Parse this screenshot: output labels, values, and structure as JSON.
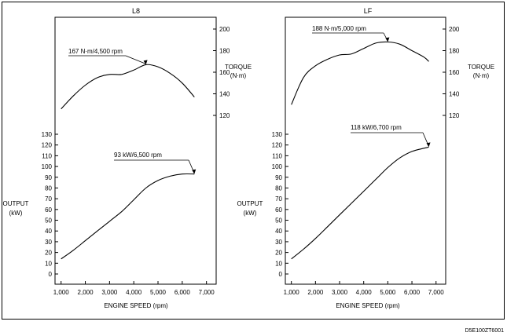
{
  "figure_code": "D5E100ZT6001",
  "chart_data": [
    {
      "type": "line",
      "title": "L8",
      "xlabel": "ENGINE SPEED (rpm)",
      "x_ticks": [
        1000,
        2000,
        3000,
        4000,
        5000,
        6000,
        7000
      ],
      "x_tick_labels": [
        "1,000",
        "2,000",
        "3,000",
        "4,000",
        "5,000",
        "6,000",
        "7,000"
      ],
      "xlim": [
        750,
        7400
      ],
      "torque_axis": {
        "label_line1": "TORQUE",
        "label_line2": "(N·m)",
        "ticks": [
          120,
          140,
          160,
          180,
          200
        ],
        "tick_labels": [
          "120",
          "140",
          "160",
          "180",
          "200"
        ]
      },
      "output_axis": {
        "label_line1": "OUTPUT",
        "label_line2": "(kW)",
        "ticks": [
          0,
          10,
          20,
          30,
          40,
          50,
          60,
          70,
          80,
          90,
          100,
          110,
          120,
          130
        ],
        "tick_labels": [
          "0",
          "10",
          "20",
          "30",
          "40",
          "50",
          "60",
          "70",
          "80",
          "90",
          "100",
          "110",
          "120",
          "130"
        ]
      },
      "series": [
        {
          "key": "torque",
          "x": [
            1000,
            1500,
            2000,
            2500,
            3000,
            3500,
            4000,
            4500,
            5000,
            5500,
            6000,
            6500
          ],
          "values": [
            126,
            138,
            148,
            155,
            158,
            158,
            162,
            167,
            165,
            159,
            150,
            137
          ]
        },
        {
          "key": "output",
          "x": [
            1000,
            1500,
            2000,
            2500,
            3000,
            3500,
            4000,
            4500,
            5000,
            5500,
            6000,
            6500
          ],
          "values": [
            14,
            22,
            31,
            40,
            49,
            58,
            69,
            80,
            87,
            91,
            93,
            93
          ]
        }
      ],
      "annotations": [
        {
          "text": "167 N·m/4,500 rpm",
          "series": "torque",
          "x": 4500,
          "y": 167
        },
        {
          "text": "93 kW/6,500 rpm",
          "series": "output",
          "x": 6500,
          "y": 93
        }
      ]
    },
    {
      "type": "line",
      "title": "LF",
      "xlabel": "ENGINE SPEED (rpm)",
      "x_ticks": [
        1000,
        2000,
        3000,
        4000,
        5000,
        6000,
        7000
      ],
      "x_tick_labels": [
        "1,000",
        "2,000",
        "3,000",
        "4,000",
        "5,000",
        "6,000",
        "7,000"
      ],
      "xlim": [
        750,
        7400
      ],
      "torque_axis": {
        "label_line1": "TORQUE",
        "label_line2": "(N·m)",
        "ticks": [
          120,
          140,
          160,
          180,
          200
        ],
        "tick_labels": [
          "120",
          "140",
          "160",
          "180",
          "200"
        ]
      },
      "output_axis": {
        "label_line1": "OUTPUT",
        "label_line2": "(kW)",
        "ticks": [
          0,
          10,
          20,
          30,
          40,
          50,
          60,
          70,
          80,
          90,
          100,
          110,
          120,
          130
        ],
        "tick_labels": [
          "0",
          "10",
          "20",
          "30",
          "40",
          "50",
          "60",
          "70",
          "80",
          "90",
          "100",
          "110",
          "120",
          "130"
        ]
      },
      "series": [
        {
          "key": "torque",
          "x": [
            1000,
            1500,
            2000,
            2500,
            3000,
            3500,
            4000,
            4500,
            5000,
            5500,
            6000,
            6500,
            6700
          ],
          "values": [
            130,
            155,
            166,
            172,
            176,
            177,
            182,
            187,
            188,
            186,
            180,
            174,
            170
          ]
        },
        {
          "key": "output",
          "x": [
            1000,
            1500,
            2000,
            2500,
            3000,
            3500,
            4000,
            4500,
            5000,
            5500,
            6000,
            6500,
            6700
          ],
          "values": [
            14,
            23,
            33,
            44,
            55,
            66,
            77,
            88,
            99,
            108,
            114,
            117,
            118
          ]
        }
      ],
      "annotations": [
        {
          "text": "188 N·m/5,000 rpm",
          "series": "torque",
          "x": 5000,
          "y": 188
        },
        {
          "text": "118 kW/6,700 rpm",
          "series": "output",
          "x": 6700,
          "y": 118
        }
      ]
    }
  ]
}
